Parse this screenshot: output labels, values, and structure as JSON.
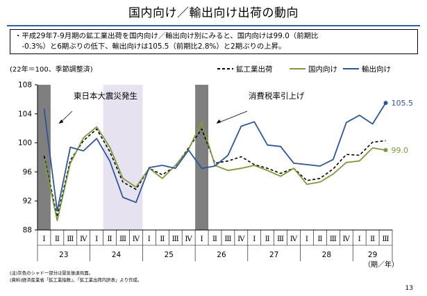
{
  "page": {
    "title": "国内向け／輸出向け出荷の動向",
    "summary_lines": [
      "・平成29年7-9月期の鉱工業出荷を国内向け／輸出向け別にみると、国内向けは99.0（前期比",
      "　-0.3%）と6期ぶりの低下、輸出向けは105.5（前期比2.8%）と2期ぶりの上昇。"
    ],
    "notes": [
      "(注)灰色のシャドー部分は景気後退局面。",
      "(資料)経済産業省「鉱工業指数」、「鉱工業出荷内訳表」より作成。"
    ],
    "page_number": "13"
  },
  "chart_data": {
    "type": "line",
    "unit_note": "(22年＝100、季節調整済)",
    "ylim": [
      88,
      108
    ],
    "y_ticks": [
      88,
      92,
      96,
      100,
      104,
      108
    ],
    "quarters": [
      "Ⅰ",
      "Ⅱ",
      "Ⅲ",
      "Ⅳ",
      "Ⅰ",
      "Ⅱ",
      "Ⅲ",
      "Ⅳ",
      "Ⅰ",
      "Ⅱ",
      "Ⅲ",
      "Ⅳ",
      "Ⅰ",
      "Ⅱ",
      "Ⅲ",
      "Ⅳ",
      "Ⅰ",
      "Ⅱ",
      "Ⅲ",
      "Ⅳ",
      "Ⅰ",
      "Ⅱ",
      "Ⅲ",
      "Ⅳ",
      "Ⅰ",
      "Ⅱ",
      "Ⅲ"
    ],
    "years": [
      {
        "label": "23",
        "start": 0,
        "end": 3
      },
      {
        "label": "24",
        "start": 4,
        "end": 7
      },
      {
        "label": "25",
        "start": 8,
        "end": 11
      },
      {
        "label": "26",
        "start": 12,
        "end": 15
      },
      {
        "label": "27",
        "start": 16,
        "end": 19
      },
      {
        "label": "28",
        "start": 20,
        "end": 23
      },
      {
        "label": "29",
        "start": 24,
        "end": 26
      }
    ],
    "x_axis_unit": "（期／年）",
    "series": [
      {
        "name": "鉱工業出荷",
        "color": "#000000",
        "dash": "4,3",
        "width": 1.6,
        "values": [
          98.2,
          89.8,
          97.6,
          100.3,
          101.9,
          98.8,
          94.6,
          93.6,
          96.5,
          95.6,
          96.8,
          99.3,
          101.9,
          97.2,
          97.5,
          98.1,
          97.0,
          96.5,
          95.8,
          96.5,
          94.8,
          95.1,
          96.4,
          98.4,
          98.3,
          100.1,
          100.3
        ]
      },
      {
        "name": "国内向け",
        "color": "#7d9a3a",
        "dash": "",
        "width": 1.8,
        "values": [
          97.8,
          89.3,
          97.2,
          100.7,
          102.2,
          99.4,
          95.1,
          93.9,
          96.5,
          95.1,
          96.9,
          99.1,
          102.9,
          96.9,
          96.2,
          96.5,
          96.9,
          96.2,
          95.4,
          96.5,
          94.3,
          94.6,
          95.7,
          97.3,
          97.5,
          99.3,
          99.0
        ]
      },
      {
        "name": "輸出向け",
        "color": "#2e5597",
        "dash": "",
        "width": 1.8,
        "values": [
          104.7,
          90.6,
          99.4,
          98.9,
          100.6,
          97.5,
          92.5,
          91.8,
          96.6,
          96.9,
          96.5,
          99.0,
          96.5,
          96.8,
          98.3,
          102.3,
          102.9,
          99.7,
          99.5,
          97.2,
          97.0,
          96.8,
          97.7,
          102.8,
          103.8,
          102.6,
          105.5
        ]
      }
    ],
    "end_labels": [
      {
        "text": "105.5",
        "color": "#2e5597"
      },
      {
        "text": "99.0",
        "color": "#7d9a3a"
      }
    ],
    "recession_bands": [
      {
        "start": 0,
        "end": 0,
        "color": "#7f7f7f"
      },
      {
        "start": 12,
        "end": 12,
        "color": "#7f7f7f"
      }
    ],
    "highlight_bands": [
      {
        "start": 5,
        "end": 7,
        "color": "#e6e2ef"
      }
    ],
    "annotations": [
      {
        "text": "東日本大震災発生",
        "at": 1
      },
      {
        "text": "消費税率引上げ",
        "at": 13
      }
    ],
    "legend_position": "top-right",
    "grid": false
  }
}
